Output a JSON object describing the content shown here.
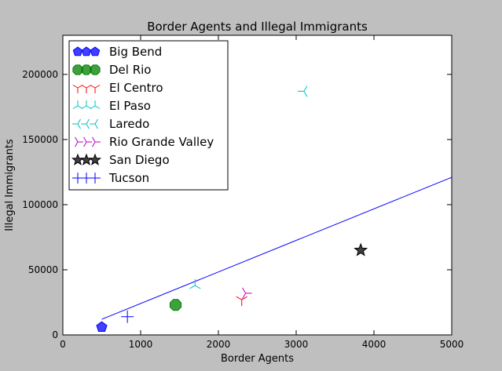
{
  "chart_data": {
    "type": "scatter",
    "title": "Border Agents and Illegal Immigrants",
    "xlabel": "Border Agents",
    "ylabel": "Illegal Immigrants",
    "xlim": [
      0,
      5000
    ],
    "ylim": [
      0,
      230000
    ],
    "xticks": [
      0,
      1000,
      2000,
      3000,
      4000,
      5000
    ],
    "yticks": [
      0,
      50000,
      100000,
      150000,
      200000
    ],
    "grid": false,
    "legend_position": "top-left",
    "series": [
      {
        "name": "Big Bend",
        "color": "#0000ff",
        "marker": "pentagon",
        "points": [
          [
            500,
            6000
          ]
        ]
      },
      {
        "name": "Del Rio",
        "color": "#008000",
        "marker": "octagon",
        "points": [
          [
            1450,
            23000
          ]
        ]
      },
      {
        "name": "El Centro",
        "color": "#ff0000",
        "marker": "tri_down",
        "points": [
          [
            2300,
            27000
          ]
        ]
      },
      {
        "name": "El Paso",
        "color": "#00bfbf",
        "marker": "tri_up",
        "points": [
          [
            1700,
            38000
          ]
        ]
      },
      {
        "name": "Laredo",
        "color": "#00bfbf",
        "marker": "tri_left",
        "points": [
          [
            3100,
            187000
          ]
        ]
      },
      {
        "name": "Rio Grande Valley",
        "color": "#bf00bf",
        "marker": "tri_right",
        "points": [
          [
            2350,
            32000
          ]
        ]
      },
      {
        "name": "San Diego",
        "color": "#000000",
        "marker": "star",
        "points": [
          [
            3830,
            65000
          ]
        ]
      },
      {
        "name": "Tucson",
        "color": "#0000ff",
        "marker": "plus",
        "points": [
          [
            830,
            14000
          ]
        ]
      }
    ],
    "trendline": {
      "color": "#0000ff",
      "x": [
        500,
        5000
      ],
      "y": [
        12000,
        121000
      ]
    }
  }
}
